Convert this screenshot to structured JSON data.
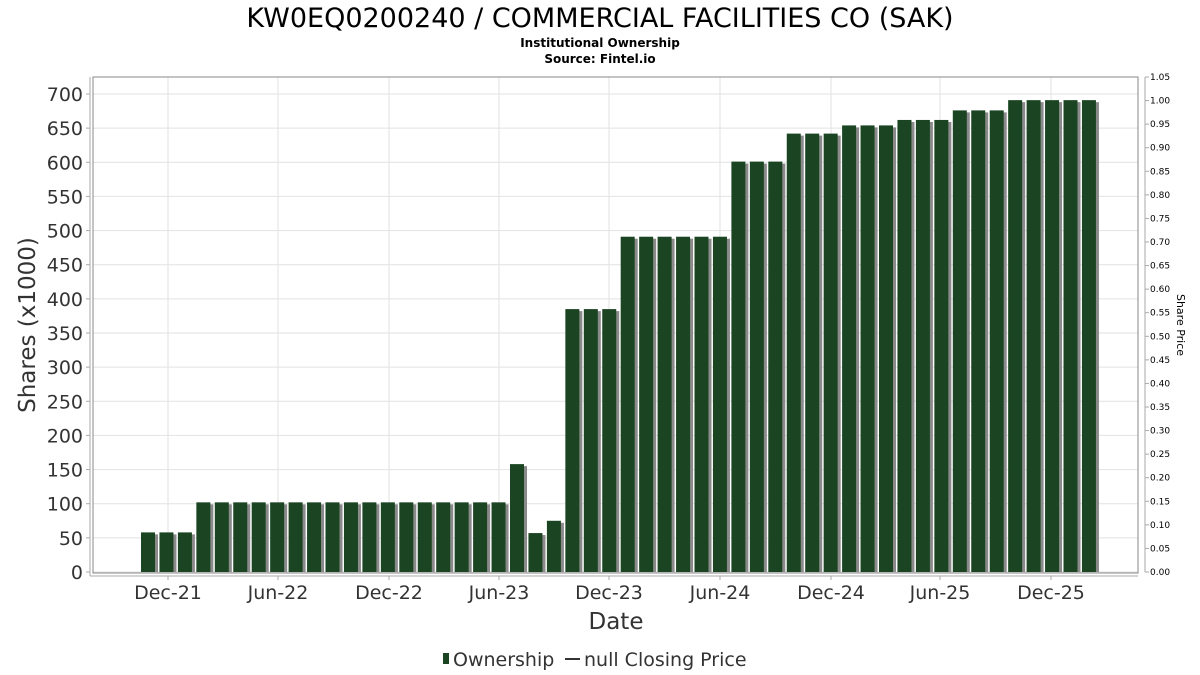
{
  "chart_data": {
    "type": "bar",
    "title": "KW0EQ0200240 / COMMERCIAL FACILITIES CO (SAK)",
    "subtitle": "Institutional Ownership",
    "source": "Source: Fintel.io",
    "xlabel": "Date",
    "ylabel": "Shares (x1000)",
    "y2label": "Share Price",
    "ylim": [
      0,
      720
    ],
    "y2lim": [
      0,
      1.05
    ],
    "grid": true,
    "legend_position": "bottom",
    "yticks": [
      "0",
      "50",
      "100",
      "150",
      "200",
      "250",
      "300",
      "350",
      "400",
      "450",
      "500",
      "550",
      "600",
      "650",
      "700"
    ],
    "y2ticks": [
      "0.00",
      "0.05",
      "0.10",
      "0.15",
      "0.20",
      "0.25",
      "0.30",
      "0.35",
      "0.40",
      "0.45",
      "0.50",
      "0.55",
      "0.60",
      "0.65",
      "0.70",
      "0.75",
      "0.80",
      "0.85",
      "0.90",
      "0.95",
      "1.00",
      "1.05"
    ],
    "xticks": [
      "Dec-21",
      "Jun-22",
      "Dec-22",
      "Jun-23",
      "Dec-23",
      "Jun-24",
      "Dec-24",
      "Jun-25",
      "Dec-25"
    ],
    "series": [
      {
        "name": "Ownership",
        "color": "#1b4423",
        "values": [
          58,
          58,
          58,
          102,
          102,
          102,
          102,
          102,
          102,
          102,
          102,
          102,
          102,
          102,
          102,
          102,
          102,
          102,
          102,
          102,
          158,
          57,
          75,
          385,
          385,
          385,
          491,
          491,
          491,
          491,
          491,
          491,
          601,
          601,
          601,
          642,
          642,
          642,
          654,
          654,
          654,
          662,
          662,
          662,
          676,
          676,
          676,
          691,
          691,
          691,
          691,
          691
        ]
      },
      {
        "name": "null Closing Price",
        "color": "#333333",
        "values": []
      }
    ]
  }
}
